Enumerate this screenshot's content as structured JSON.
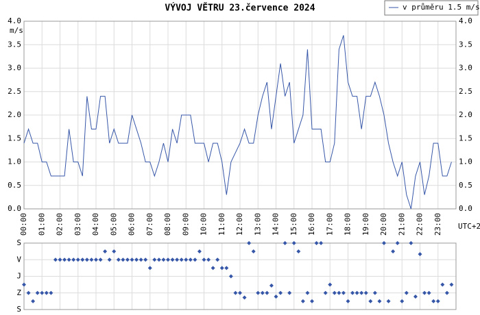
{
  "chart_data": [
    {
      "type": "line",
      "title": "VÝVOJ VĚTRU  23.července 2024",
      "ylabel": "m/s",
      "xlabel": "UTC+2",
      "legend": "upper right",
      "x": [
        0,
        0.25,
        0.5,
        0.75,
        1,
        1.25,
        1.5,
        1.75,
        2,
        2.25,
        2.5,
        2.75,
        3,
        3.25,
        3.5,
        3.75,
        4,
        4.25,
        4.5,
        4.75,
        5,
        5.25,
        5.5,
        5.75,
        6,
        6.25,
        6.5,
        6.75,
        7,
        7.25,
        7.5,
        7.75,
        8,
        8.25,
        8.5,
        8.75,
        9,
        9.25,
        9.5,
        9.75,
        10,
        10.25,
        10.5,
        10.75,
        11,
        11.25,
        11.5,
        11.75,
        12,
        12.25,
        12.5,
        12.75,
        13,
        13.25,
        13.5,
        13.75,
        14,
        14.25,
        14.5,
        14.75,
        15,
        15.25,
        15.5,
        15.75,
        16,
        16.25,
        16.5,
        16.75,
        17,
        17.25,
        17.5,
        17.75,
        18,
        18.25,
        18.5,
        18.75,
        19,
        19.25,
        19.5,
        19.75,
        20,
        20.25,
        20.5,
        20.75,
        21,
        21.25,
        21.5,
        21.75,
        22,
        22.25,
        22.5,
        22.75,
        23,
        23.25,
        23.5,
        23.75
      ],
      "series": [
        {
          "name": "v průměru 1.5 m/s",
          "color": "#3656a8",
          "values": [
            1.4,
            1.7,
            1.4,
            1.4,
            1.0,
            1.0,
            0.7,
            0.7,
            0.7,
            0.7,
            1.7,
            1.0,
            1.0,
            0.7,
            2.4,
            1.7,
            1.7,
            2.4,
            2.4,
            1.4,
            1.7,
            1.4,
            1.4,
            1.4,
            2.0,
            1.7,
            1.4,
            1.0,
            1.0,
            0.7,
            1.0,
            1.4,
            1.0,
            1.7,
            1.4,
            2.0,
            2.0,
            2.0,
            1.4,
            1.4,
            1.4,
            1.0,
            1.4,
            1.4,
            1.0,
            0.3,
            1.0,
            1.2,
            1.4,
            1.7,
            1.4,
            1.4,
            2.0,
            2.4,
            2.7,
            1.7,
            2.4,
            3.1,
            2.4,
            2.7,
            1.4,
            1.7,
            2.0,
            3.4,
            1.7,
            1.7,
            1.7,
            1.0,
            1.0,
            1.4,
            3.4,
            3.7,
            2.7,
            2.4,
            2.4,
            1.7,
            2.4,
            2.4,
            2.7,
            2.4,
            2.0,
            1.4,
            1.0,
            0.7,
            1.0,
            0.3,
            0.0,
            0.7,
            1.0,
            0.3,
            0.7,
            1.4,
            1.4,
            0.7,
            0.7,
            1.0
          ]
        }
      ],
      "xlim": [
        0,
        24
      ],
      "xticks": [
        {
          "value": 0,
          "label": "00:00"
        },
        {
          "value": 1,
          "label": "01:00"
        },
        {
          "value": 2,
          "label": "02:00"
        },
        {
          "value": 3,
          "label": "03:00"
        },
        {
          "value": 4,
          "label": "04:00"
        },
        {
          "value": 5,
          "label": "05:00"
        },
        {
          "value": 6,
          "label": "06:00"
        },
        {
          "value": 7,
          "label": "07:00"
        },
        {
          "value": 8,
          "label": "08:00"
        },
        {
          "value": 9,
          "label": "09:00"
        },
        {
          "value": 10,
          "label": "10:00"
        },
        {
          "value": 11,
          "label": "11:00"
        },
        {
          "value": 12,
          "label": "12:00"
        },
        {
          "value": 13,
          "label": "13:00"
        },
        {
          "value": 14,
          "label": "14:00"
        },
        {
          "value": 15,
          "label": "15:00"
        },
        {
          "value": 16,
          "label": "16:00"
        },
        {
          "value": 17,
          "label": "17:00"
        },
        {
          "value": 18,
          "label": "18:00"
        },
        {
          "value": 19,
          "label": "19:00"
        },
        {
          "value": 20,
          "label": "20:00"
        },
        {
          "value": 21,
          "label": "21:00"
        },
        {
          "value": 22,
          "label": "22:00"
        },
        {
          "value": 23,
          "label": "23:00"
        }
      ],
      "ylim": [
        0,
        4
      ],
      "yticks": [
        {
          "value": 0,
          "label": "0.0"
        },
        0.5,
        {
          "value": 1,
          "label": "1.0"
        },
        1.5,
        {
          "value": 2,
          "label": "2.0"
        },
        2.5,
        {
          "value": 3,
          "label": "3.0"
        },
        3.5,
        {
          "value": 4,
          "label": "4.0"
        }
      ],
      "grid": true
    },
    {
      "type": "scatter",
      "x": [
        0,
        0.25,
        0.5,
        0.75,
        1,
        1.25,
        1.5,
        1.75,
        2,
        2.25,
        2.5,
        2.75,
        3,
        3.25,
        3.5,
        3.75,
        4,
        4.25,
        4.5,
        4.75,
        5,
        5.25,
        5.5,
        5.75,
        6,
        6.25,
        6.5,
        6.75,
        7,
        7.25,
        7.5,
        7.75,
        8,
        8.25,
        8.5,
        8.75,
        9,
        9.25,
        9.5,
        9.75,
        10,
        10.25,
        10.5,
        10.75,
        11,
        11.25,
        11.5,
        11.75,
        12,
        12.25,
        12.5,
        12.75,
        13,
        13.25,
        13.5,
        13.75,
        14,
        14.25,
        14.5,
        14.75,
        15,
        15.25,
        15.5,
        15.75,
        16,
        16.25,
        16.5,
        16.75,
        17,
        17.25,
        17.5,
        17.75,
        18,
        18.25,
        18.5,
        18.75,
        19,
        19.25,
        19.5,
        19.75,
        20,
        20.25,
        20.5,
        20.75,
        21,
        21.25,
        21.5,
        21.75,
        22,
        22.25,
        22.5,
        22.75,
        23,
        23.25,
        23.5,
        23.75
      ],
      "color": "#3656a8",
      "values": [
        135,
        90,
        45,
        90,
        90,
        90,
        90,
        270,
        270,
        270,
        270,
        270,
        270,
        270,
        270,
        270,
        270,
        270,
        315,
        270,
        315,
        270,
        270,
        270,
        270,
        270,
        270,
        270,
        225,
        270,
        270,
        270,
        270,
        270,
        270,
        270,
        270,
        270,
        270,
        315,
        270,
        270,
        225,
        270,
        225,
        225,
        180,
        90,
        90,
        65,
        360,
        315,
        90,
        90,
        90,
        130,
        70,
        90,
        360,
        90,
        360,
        315,
        45,
        90,
        45,
        360,
        360,
        90,
        135,
        90,
        90,
        90,
        45,
        90,
        90,
        90,
        90,
        45,
        90,
        45,
        360,
        45,
        315,
        360,
        45,
        90,
        360,
        70,
        300,
        90,
        90,
        45,
        45,
        135,
        90,
        135
      ],
      "xlim": [
        0,
        24
      ],
      "ylim": [
        0,
        360
      ],
      "yticks": [
        {
          "value": 360,
          "label": "S"
        },
        {
          "value": 270,
          "label": "V"
        },
        {
          "value": 180,
          "label": "J"
        },
        {
          "value": 90,
          "label": "Z"
        },
        {
          "value": 0,
          "label": "S"
        }
      ],
      "grid": true
    }
  ]
}
